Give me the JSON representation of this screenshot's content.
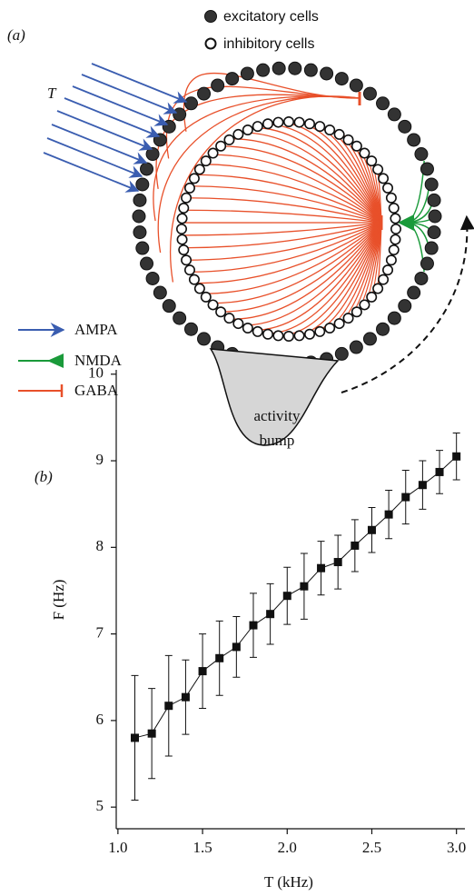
{
  "panel_a": {
    "label": "(a)",
    "legend": {
      "excitatory": "excitatory cells",
      "inhibitory": "inhibitory cells"
    },
    "input_label": "T",
    "synapses": [
      "AMPA",
      "NMDA",
      "GABA"
    ],
    "bump_label": [
      "activity",
      "bump"
    ]
  },
  "chart_data": {
    "type": "line",
    "panel_label": "(b)",
    "x_label": "T (kHz)",
    "y_label": "F (Hz)",
    "x": [
      1.1,
      1.2,
      1.3,
      1.4,
      1.5,
      1.6,
      1.7,
      1.8,
      1.9,
      2.0,
      2.1,
      2.2,
      2.3,
      2.4,
      2.5,
      2.6,
      2.7,
      2.8,
      2.9,
      3.0
    ],
    "series": [
      {
        "color": "#111111",
        "values": [
          5.8,
          5.85,
          6.17,
          6.27,
          6.57,
          6.72,
          6.85,
          7.1,
          7.23,
          7.44,
          7.55,
          7.76,
          7.83,
          8.02,
          8.2,
          8.38,
          8.58,
          8.72,
          8.87,
          9.05
        ],
        "errors": [
          0.72,
          0.52,
          0.58,
          0.43,
          0.43,
          0.43,
          0.35,
          0.37,
          0.35,
          0.33,
          0.38,
          0.31,
          0.31,
          0.3,
          0.26,
          0.28,
          0.31,
          0.28,
          0.25,
          0.27
        ]
      }
    ],
    "xlim": [
      0.99,
      3.05
    ],
    "ylim": [
      4.75,
      10.05
    ],
    "xticks": [
      {
        "value": 1,
        "label": "1.0"
      },
      1.5,
      {
        "value": 2,
        "label": "2.0"
      },
      2.5,
      {
        "value": 3,
        "label": "3.0"
      }
    ],
    "yticks": [
      5,
      6,
      7,
      8,
      9,
      10
    ]
  }
}
